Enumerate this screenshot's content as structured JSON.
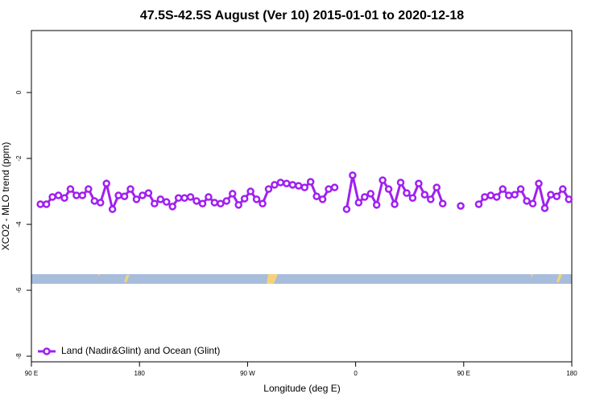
{
  "chart_data": {
    "type": "line",
    "title": "47.5S-42.5S August (Ver 10)   2015-01-01 to 2020-12-18",
    "x_label": "Longitude (deg E)",
    "y_label": "XCO2 - MLO trend (ppm)",
    "xlim": [
      90,
      540
    ],
    "ylim": [
      -8.17,
      1.88
    ],
    "xticks": [
      {
        "value": 90,
        "label": "90 E"
      },
      180,
      {
        "value": 270,
        "label": "90 W"
      },
      {
        "value": 360,
        "label": "0"
      },
      {
        "value": 450,
        "label": "90 E"
      },
      {
        "value": 540,
        "label": "180"
      }
    ],
    "yticks": [
      0,
      -2,
      -4,
      -6,
      -8
    ],
    "legend": "bottomleft",
    "x": [
      97.5,
      102.5,
      107.5,
      112.5,
      117.5,
      122.5,
      127.5,
      132.5,
      137.5,
      142.5,
      147.5,
      152.5,
      157.5,
      162.5,
      167.5,
      172.5,
      177.5,
      182.5,
      187.5,
      192.5,
      197.5,
      202.5,
      207.5,
      212.5,
      217.5,
      222.5,
      227.5,
      232.5,
      237.5,
      242.5,
      247.5,
      252.5,
      257.5,
      262.5,
      267.5,
      272.5,
      277.5,
      282.5,
      287.5,
      292.5,
      297.5,
      302.5,
      307.5,
      312.5,
      317.5,
      322.5,
      327.5,
      332.5,
      337.5,
      342.5,
      347.5,
      352.5,
      357.5,
      362.5,
      367.5,
      372.5,
      377.5,
      382.5,
      387.5,
      392.5,
      397.5,
      402.5,
      407.5,
      412.5,
      417.5,
      422.5,
      427.5,
      432.5,
      437.5,
      442.5,
      447.5,
      452.5,
      457.5,
      462.5,
      467.5,
      472.5,
      477.5,
      482.5,
      487.5,
      492.5,
      497.5,
      502.5,
      507.5,
      512.5,
      517.5,
      522.5,
      527.5,
      532.5,
      537.5
    ],
    "series": [
      {
        "name": "Land (Nadir&Glint) and Ocean (Glint)",
        "color": "#a020f0",
        "values": [
          -3.39,
          -3.39,
          -3.17,
          -3.12,
          -3.2,
          -2.93,
          -3.12,
          -3.12,
          -2.93,
          -3.29,
          -3.34,
          -2.76,
          -3.54,
          -3.12,
          -3.15,
          -2.93,
          -3.24,
          -3.12,
          -3.05,
          -3.37,
          -3.24,
          -3.32,
          -3.46,
          -3.2,
          -3.2,
          -3.17,
          -3.29,
          -3.37,
          -3.17,
          -3.34,
          -3.37,
          -3.29,
          -3.07,
          -3.41,
          -3.22,
          -3.0,
          -3.24,
          -3.37,
          -2.93,
          -2.8,
          -2.73,
          -2.76,
          -2.8,
          -2.83,
          -2.88,
          -2.71,
          -3.15,
          -3.24,
          -2.93,
          -2.88,
          null,
          -3.54,
          -2.51,
          -3.34,
          -3.17,
          -3.07,
          -3.41,
          -2.66,
          -2.93,
          -3.39,
          -2.73,
          -3.05,
          -3.2,
          -2.76,
          -3.1,
          -3.24,
          -2.88,
          -3.37,
          null,
          null,
          -3.44,
          null,
          null,
          -3.39,
          -3.17,
          -3.12,
          -3.17,
          -2.93,
          -3.12,
          -3.1,
          -2.93,
          -3.29,
          -3.37,
          -2.76,
          -3.51,
          -3.1,
          -3.15,
          -2.93,
          -3.24
        ]
      }
    ]
  }
}
